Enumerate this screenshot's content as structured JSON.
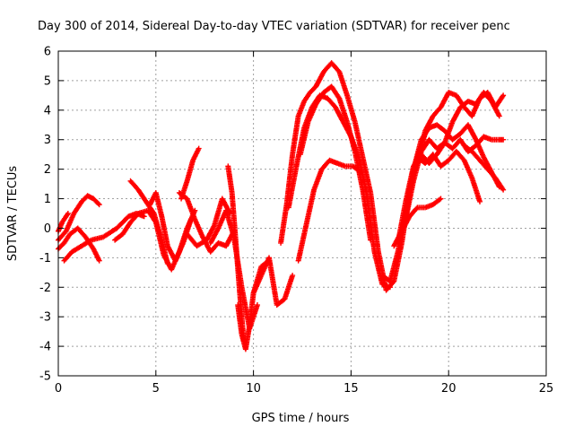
{
  "chart_data": {
    "type": "scatter",
    "title": "Day 300 of 2014, Sidereal Day-to-day VTEC variation (SDTVAR) for receiver penc",
    "xlabel": "GPS time / hours",
    "ylabel": "SDTVAR / TECUs",
    "xlim": [
      0,
      25
    ],
    "ylim": [
      -5,
      6
    ],
    "xticks": [
      0,
      5,
      10,
      15,
      20,
      25
    ],
    "yticks": [
      -5,
      -4,
      -3,
      -2,
      -1,
      0,
      1,
      2,
      3,
      4,
      5,
      6
    ],
    "grid": true,
    "marker": "plus",
    "series_color": "#ff0000",
    "series": [
      {
        "x": [
          0.0,
          0.4,
          0.8,
          1.2,
          1.5,
          1.8,
          2.1
        ],
        "y": [
          -0.4,
          -0.1,
          0.5,
          0.9,
          1.1,
          1.0,
          0.8
        ]
      },
      {
        "x": [
          0.0,
          0.3,
          0.6,
          1.0,
          1.4,
          1.8,
          2.1
        ],
        "y": [
          -0.7,
          -0.5,
          -0.2,
          0.0,
          -0.3,
          -0.7,
          -1.1
        ]
      },
      {
        "x": [
          0.3,
          0.7,
          1.2,
          1.7,
          2.3,
          3.0,
          3.6,
          4.0,
          4.4
        ],
        "y": [
          -1.1,
          -0.8,
          -0.6,
          -0.4,
          -0.3,
          0.0,
          0.4,
          0.5,
          0.4
        ]
      },
      {
        "x": [
          0.0,
          0.2,
          0.5
        ],
        "y": [
          -0.1,
          0.2,
          0.5
        ]
      },
      {
        "x": [
          2.9,
          3.3,
          3.7,
          4.1,
          4.6,
          5.0,
          5.4,
          5.8,
          6.2,
          6.6,
          7.0
        ],
        "y": [
          -0.4,
          -0.2,
          0.2,
          0.5,
          0.6,
          0.2,
          -0.9,
          -1.4,
          -0.8,
          0.0,
          0.6
        ]
      },
      {
        "x": [
          3.7,
          4.1,
          4.5,
          4.9,
          5.3,
          5.6
        ],
        "y": [
          1.6,
          1.3,
          0.9,
          0.5,
          -0.4,
          -1.2
        ]
      },
      {
        "x": [
          4.7,
          5.0,
          5.3,
          5.6,
          6.0,
          6.4,
          6.8
        ],
        "y": [
          0.8,
          1.2,
          0.4,
          -0.6,
          -1.1,
          -0.5,
          0.3
        ]
      },
      {
        "x": [
          6.2,
          6.6,
          7.0,
          7.4,
          7.8,
          8.2,
          8.6,
          9.0
        ],
        "y": [
          1.2,
          1.0,
          0.3,
          -0.3,
          -0.8,
          -0.5,
          -0.6,
          -0.1
        ]
      },
      {
        "x": [
          6.3,
          6.6,
          6.9,
          7.2
        ],
        "y": [
          1.0,
          1.6,
          2.3,
          2.7
        ]
      },
      {
        "x": [
          6.6,
          7.1,
          7.6,
          8.0,
          8.4,
          8.8
        ],
        "y": [
          -0.2,
          -0.6,
          -0.4,
          0.1,
          1.0,
          0.5
        ]
      },
      {
        "x": [
          7.8,
          8.2,
          8.6,
          9.0,
          9.4,
          9.8,
          10.2
        ],
        "y": [
          -0.5,
          0.0,
          0.6,
          -0.3,
          -2.0,
          -3.4,
          -2.6
        ]
      },
      {
        "x": [
          8.7,
          8.9,
          9.1,
          9.3,
          9.5
        ],
        "y": [
          2.1,
          1.2,
          -0.5,
          -2.2,
          -3.8
        ]
      },
      {
        "x": [
          9.2,
          9.4,
          9.6,
          9.8,
          10.0,
          10.4,
          10.8
        ],
        "y": [
          -2.6,
          -3.6,
          -4.1,
          -3.3,
          -2.2,
          -1.3,
          -1.1
        ]
      },
      {
        "x": [
          10.0,
          10.4,
          10.8,
          11.2,
          11.6,
          12.0
        ],
        "y": [
          -2.2,
          -1.6,
          -1.0,
          -2.6,
          -2.4,
          -1.6
        ]
      },
      {
        "x": [
          11.4,
          11.7,
          12.0,
          12.3,
          12.6,
          12.9,
          13.2,
          13.6,
          14.0,
          14.4,
          14.8,
          15.2,
          15.6,
          16.0,
          16.4,
          16.8,
          17.2,
          17.6,
          18.0,
          18.4,
          18.8
        ],
        "y": [
          -0.5,
          0.8,
          2.5,
          3.8,
          4.3,
          4.6,
          4.8,
          5.3,
          5.6,
          5.3,
          4.5,
          3.6,
          2.4,
          1.2,
          -0.8,
          -2.1,
          -1.8,
          -0.5,
          1.2,
          2.4,
          3.2
        ]
      },
      {
        "x": [
          11.8,
          12.2,
          12.6,
          13.0,
          13.4,
          13.8,
          14.2,
          14.6,
          15.0,
          15.4,
          15.8,
          16.2,
          16.6,
          17.0
        ],
        "y": [
          0.7,
          2.1,
          3.4,
          4.1,
          4.5,
          4.4,
          4.1,
          3.6,
          3.1,
          2.4,
          1.2,
          -0.8,
          -1.9,
          -2.0
        ]
      },
      {
        "x": [
          12.4,
          12.8,
          13.2,
          13.6,
          14.0,
          14.4,
          14.8,
          15.2,
          15.6,
          16.0
        ],
        "y": [
          2.5,
          3.6,
          4.2,
          4.6,
          4.8,
          4.4,
          3.6,
          2.6,
          1.3,
          -0.4
        ]
      },
      {
        "x": [
          12.3,
          12.7,
          13.1,
          13.5,
          13.9,
          14.3,
          14.7,
          15.1,
          15.5
        ],
        "y": [
          -1.1,
          0.1,
          1.3,
          2.0,
          2.3,
          2.2,
          2.1,
          2.1,
          1.9
        ]
      },
      {
        "x": [
          16.6,
          17.0,
          17.4,
          17.8,
          18.2,
          18.6,
          19.0,
          19.4,
          19.8,
          20.2,
          20.6,
          21.0,
          21.4,
          21.8,
          22.2,
          22.6
        ],
        "y": [
          -1.6,
          -1.8,
          -0.8,
          0.6,
          2.0,
          3.0,
          3.4,
          3.5,
          3.3,
          3.0,
          3.2,
          3.5,
          3.0,
          2.4,
          1.9,
          1.4
        ]
      },
      {
        "x": [
          17.8,
          18.2,
          18.6,
          19.0,
          19.4,
          19.8,
          20.2,
          20.6,
          21.0,
          21.4,
          21.8,
          22.2,
          22.6
        ],
        "y": [
          0.3,
          1.6,
          2.6,
          3.0,
          2.7,
          2.9,
          3.6,
          4.1,
          4.3,
          4.2,
          4.6,
          4.3,
          3.8
        ]
      },
      {
        "x": [
          18.4,
          18.8,
          19.2,
          19.6,
          20.0,
          20.4,
          20.8,
          21.2,
          21.6,
          22.0,
          22.4,
          22.8
        ],
        "y": [
          2.2,
          3.3,
          3.8,
          4.1,
          4.6,
          4.5,
          4.1,
          3.8,
          4.4,
          4.6,
          4.1,
          4.5
        ]
      },
      {
        "x": [
          17.4,
          17.8,
          18.2,
          18.6,
          19.0,
          19.4,
          19.8,
          20.2,
          20.6,
          21.0,
          21.4,
          21.8,
          22.2,
          22.6,
          22.8
        ],
        "y": [
          -0.5,
          0.9,
          2.1,
          2.5,
          2.2,
          2.5,
          2.9,
          2.7,
          3.0,
          2.6,
          2.8,
          3.1,
          3.0,
          3.0,
          3.0
        ]
      },
      {
        "x": [
          17.6,
          18.0,
          18.4,
          18.8,
          19.2,
          19.6,
          20.0,
          20.4,
          20.8,
          21.2,
          21.6
        ],
        "y": [
          -0.1,
          1.3,
          2.4,
          2.2,
          2.5,
          2.1,
          2.3,
          2.6,
          2.3,
          1.7,
          0.9
        ]
      },
      {
        "x": [
          17.2,
          17.6,
          18.0,
          18.4,
          18.8,
          19.2,
          19.6
        ],
        "y": [
          -0.6,
          -0.1,
          0.4,
          0.7,
          0.7,
          0.8,
          1.0
        ]
      },
      {
        "x": [
          20.8,
          21.2,
          21.6,
          22.0,
          22.4,
          22.8
        ],
        "y": [
          2.8,
          2.6,
          2.3,
          2.0,
          1.7,
          1.3
        ]
      }
    ]
  }
}
